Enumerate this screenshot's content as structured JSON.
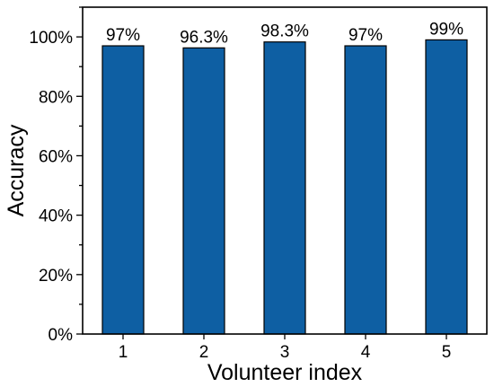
{
  "chart_data": {
    "type": "bar",
    "categories": [
      "1",
      "2",
      "3",
      "4",
      "5"
    ],
    "values": [
      97,
      96.3,
      98.3,
      97,
      99
    ],
    "data_labels": [
      "97%",
      "96.3%",
      "98.3%",
      "97%",
      "99%"
    ],
    "xlabel": "Volunteer index",
    "ylabel": "Accuracy",
    "ylim": [
      0,
      110
    ],
    "yticks": [
      0,
      20,
      40,
      60,
      80,
      100
    ],
    "ytick_labels": [
      "0%",
      "20%",
      "40%",
      "60%",
      "80%",
      "100%"
    ],
    "bar_color": "#0E5FA3",
    "grid": false,
    "legend": "none"
  }
}
